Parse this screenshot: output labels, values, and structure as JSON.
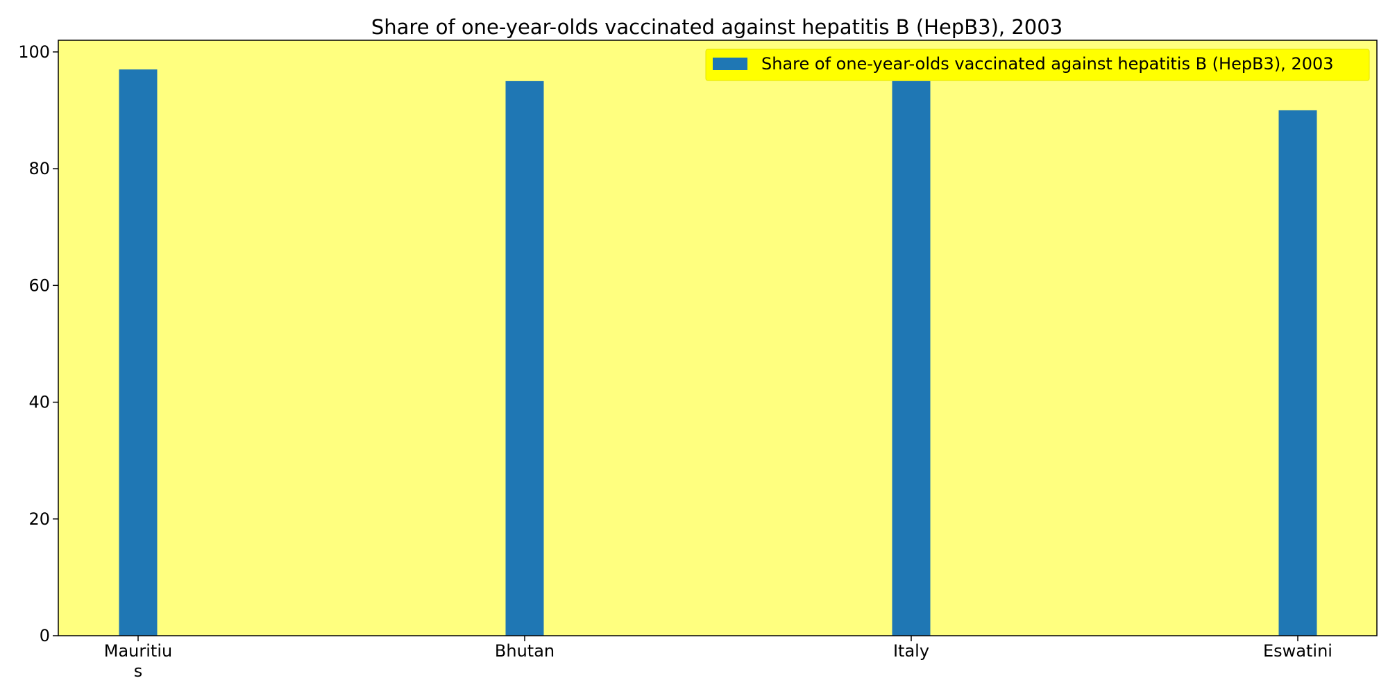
{
  "chart_data": {
    "type": "bar",
    "title": "Share of one-year-olds vaccinated against hepatitis B (HepB3), 2003",
    "xlabel": "",
    "ylabel": "",
    "categories": [
      "Mauritius",
      "Bhutan",
      "Italy",
      "Eswatini"
    ],
    "series": [
      {
        "name": "Share of one-year-olds vaccinated against hepatitis B (HepB3), 2003",
        "values": [
          97,
          95,
          95,
          90
        ],
        "color": "#1f77b4"
      }
    ],
    "ylim": [
      0,
      102
    ],
    "yticks": [
      0,
      20,
      40,
      60,
      80,
      100
    ],
    "grid": false,
    "legend_position": "top-right",
    "plot_background": "#ffff7f",
    "legend_background": "#ffff00"
  }
}
